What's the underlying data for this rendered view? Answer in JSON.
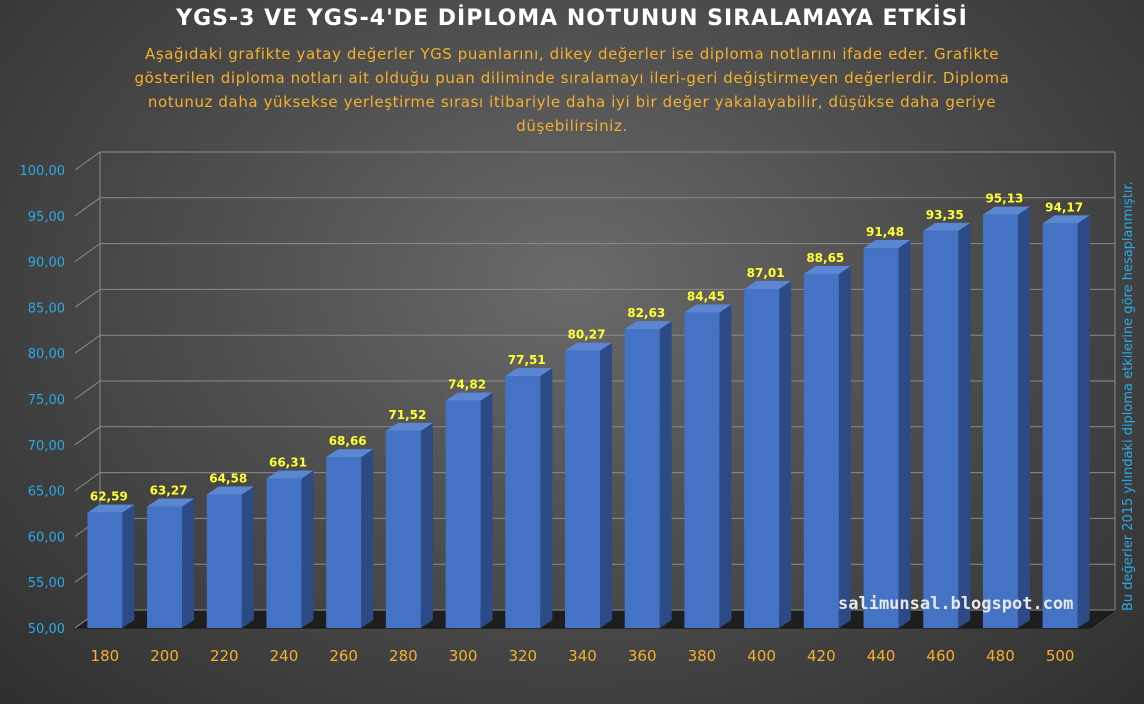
{
  "chart_data": {
    "type": "bar",
    "title": "YGS-3 VE YGS-4'DE DİPLOMA NOTUNUN SIRALAMAYA ETKİSİ",
    "subtitle": "Aşağıdaki grafikte yatay değerler YGS puanlarını, dikey değerler ise diploma notlarını ifade eder. Grafikte gösterilen diploma notları ait olduğu puan diliminde sıralamayı ileri-geri değiştirmeyen değerlerdir. Diploma notunuz daha yüksekse yerleştirme sırası itibariyle daha iyi bir değer yakalayabilir, düşükse daha geriye düşebilirsiniz.",
    "side_note": "Bu değerler 2015 yılındaki diploma etkilerine göre hesaplanmıştır.",
    "watermark": "salimunsal.blogspot.com",
    "categories": [
      "180",
      "200",
      "220",
      "240",
      "260",
      "280",
      "300",
      "320",
      "340",
      "360",
      "380",
      "400",
      "420",
      "440",
      "460",
      "480",
      "500"
    ],
    "values": [
      62.59,
      63.27,
      64.58,
      66.31,
      68.66,
      71.52,
      74.82,
      77.51,
      80.27,
      82.63,
      84.45,
      87.01,
      88.65,
      91.48,
      93.35,
      95.13,
      94.17
    ],
    "value_labels": [
      "62,59",
      "63,27",
      "64,58",
      "66,31",
      "68,66",
      "71,52",
      "74,82",
      "77,51",
      "80,27",
      "82,63",
      "84,45",
      "87,01",
      "88,65",
      "91,48",
      "93,35",
      "95,13",
      "94,17"
    ],
    "y_ticks": [
      "50,00",
      "55,00",
      "60,00",
      "65,00",
      "70,00",
      "75,00",
      "80,00",
      "85,00",
      "90,00",
      "95,00",
      "100,00"
    ],
    "xlabel": "",
    "ylabel": "",
    "ylim": [
      50,
      100
    ],
    "grid": true,
    "legend": "none",
    "colors": {
      "bar_front": "#4472c4",
      "bar_side": "#2c4a86",
      "bar_top": "#5b86d2",
      "title": "#ffffff",
      "subtitle": "#f5b02e",
      "x_ticks": "#f5b02e",
      "y_ticks": "#2aa9e8",
      "data_labels": "#ffff33",
      "gridline": "#8a8a8a"
    }
  }
}
